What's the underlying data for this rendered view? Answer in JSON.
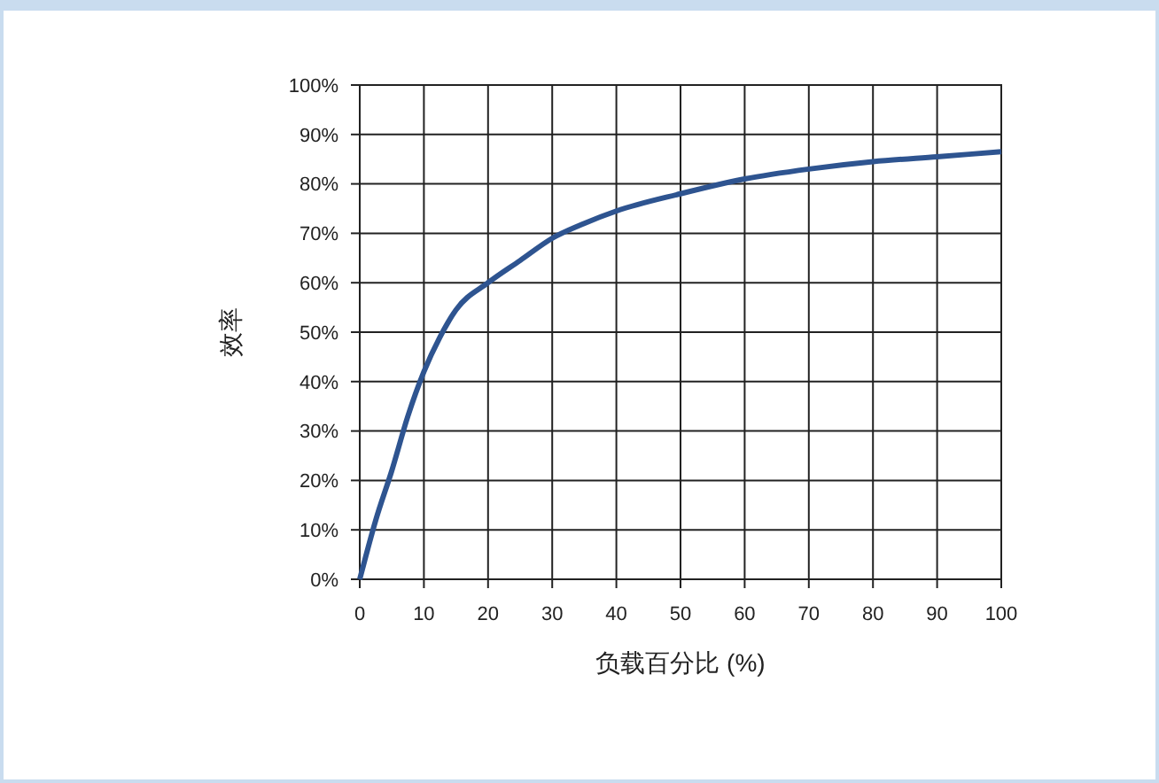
{
  "chart_data": {
    "type": "line",
    "xlabel": "负载百分比 (%)",
    "ylabel": "效率",
    "x": [
      0,
      2.5,
      5,
      7.5,
      10,
      12.5,
      15,
      20,
      25,
      30,
      35,
      40,
      50,
      60,
      70,
      80,
      90,
      100
    ],
    "series": [
      {
        "color": "#2e5490",
        "values": [
          0,
          12,
          22,
          33,
          42,
          49,
          54.5,
          60,
          64.5,
          69,
          72,
          74.5,
          78,
          81,
          83,
          84.5,
          85.5,
          86.5
        ]
      }
    ],
    "xlim": [
      0,
      100
    ],
    "xticks": [
      0,
      10,
      20,
      30,
      40,
      50,
      60,
      70,
      80,
      90,
      100
    ],
    "ylim": [
      0,
      100
    ],
    "yticks": [
      {
        "value": 0,
        "label": "0%"
      },
      {
        "value": 10,
        "label": "10%"
      },
      {
        "value": 20,
        "label": "20%"
      },
      {
        "value": 30,
        "label": "30%"
      },
      {
        "value": 40,
        "label": "40%"
      },
      {
        "value": 50,
        "label": "50%"
      },
      {
        "value": 60,
        "label": "60%"
      },
      {
        "value": 70,
        "label": "70%"
      },
      {
        "value": 80,
        "label": "80%"
      },
      {
        "value": 90,
        "label": "90%"
      },
      {
        "value": 100,
        "label": "100%"
      }
    ],
    "grid": true,
    "marker": "none",
    "line_style": "solid"
  }
}
